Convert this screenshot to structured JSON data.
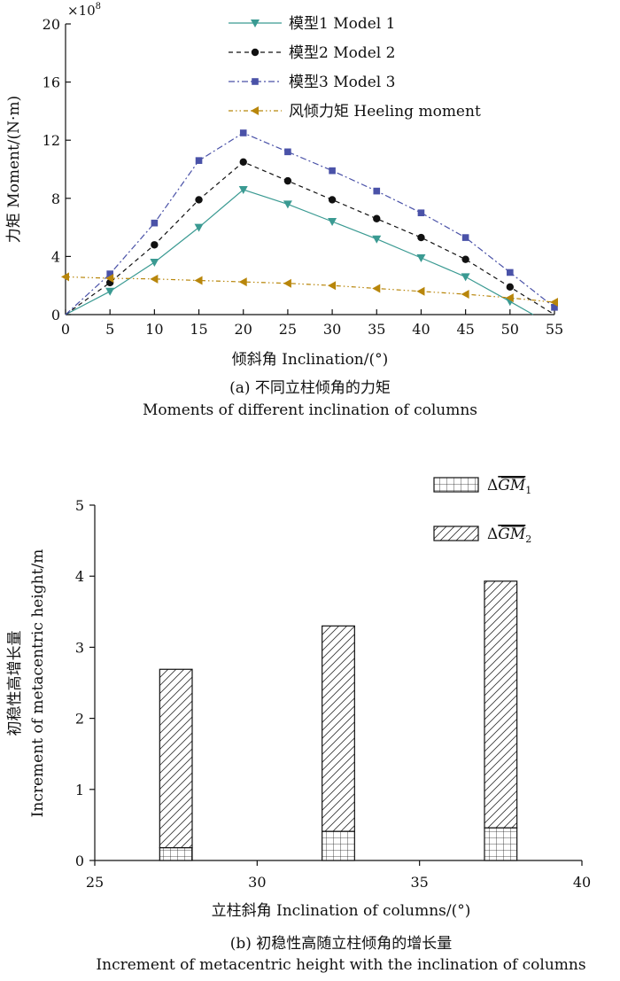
{
  "chart_data": [
    {
      "type": "line",
      "caption_zh": "(a) 不同立柱倾角的力矩",
      "caption_en": "Moments of different inclination of columns",
      "xlabel": "倾斜角 Inclination/(°)",
      "ylabel": "力矩 Moment/(N·m)",
      "y_multiplier": "×10",
      "y_multiplier_exp": "8",
      "xlim": [
        0,
        55
      ],
      "ylim": [
        0,
        20
      ],
      "x_ticks": [
        "0",
        "5",
        "10",
        "15",
        "20",
        "25",
        "30",
        "35",
        "40",
        "45",
        "50",
        "55"
      ],
      "y_ticks": [
        "0",
        "4",
        "8",
        "12",
        "16",
        "20"
      ],
      "grid": false,
      "legend_position": "top-center",
      "series": [
        {
          "name": "模型1 Model 1",
          "color": "#3a9a92",
          "marker": "triangle-down",
          "line_style": "solid",
          "x": [
            0,
            5,
            10,
            15,
            20,
            25,
            30,
            35,
            40,
            45,
            50,
            52.6
          ],
          "y": [
            0,
            1.6,
            3.6,
            6.0,
            8.6,
            7.6,
            6.4,
            5.2,
            3.9,
            2.6,
            0.9,
            0
          ],
          "marker_x": [
            5,
            10,
            15,
            20,
            25,
            30,
            35,
            40,
            45,
            50
          ]
        },
        {
          "name": "模型2 Model 2",
          "color": "#111111",
          "marker": "circle",
          "line_style": "dashed",
          "x": [
            0,
            5,
            10,
            15,
            20,
            25,
            30,
            35,
            40,
            45,
            50,
            55
          ],
          "y": [
            0,
            2.2,
            4.8,
            7.9,
            10.5,
            9.2,
            7.9,
            6.6,
            5.3,
            3.8,
            1.9,
            0
          ],
          "marker_x": [
            5,
            10,
            15,
            20,
            25,
            30,
            35,
            40,
            45,
            50
          ]
        },
        {
          "name": "模型3 Model 3",
          "color": "#4a52a8",
          "marker": "square",
          "line_style": "dash-dot",
          "x": [
            0,
            5,
            10,
            15,
            20,
            25,
            30,
            35,
            40,
            45,
            50,
            55
          ],
          "y": [
            0,
            2.8,
            6.3,
            10.6,
            12.5,
            11.2,
            9.9,
            8.5,
            7.0,
            5.3,
            2.9,
            0.5
          ],
          "marker_x": [
            5,
            10,
            15,
            20,
            25,
            30,
            35,
            40,
            45,
            50,
            55
          ]
        },
        {
          "name": "风倾力矩 Heeling moment",
          "color": "#b8860b",
          "marker": "triangle-left",
          "line_style": "dash-dot-dot",
          "x": [
            0,
            5,
            10,
            15,
            20,
            25,
            30,
            35,
            40,
            45,
            50,
            55
          ],
          "y": [
            2.6,
            2.5,
            2.45,
            2.35,
            2.25,
            2.15,
            2.0,
            1.8,
            1.6,
            1.4,
            1.15,
            0.85
          ],
          "marker_x": [
            0,
            5,
            10,
            15,
            20,
            25,
            30,
            35,
            40,
            45,
            50,
            55
          ]
        }
      ]
    },
    {
      "type": "bar",
      "stacked": true,
      "caption_zh": "(b) 初稳性高随立柱倾角的增长量",
      "caption_en": "Increment of metacentric height with the inclination of columns",
      "xlabel": "立柱斜角 Inclination of columns/(°)",
      "ylabel_zh": "初稳性高增长量",
      "ylabel_en": "Increment of metacentric height/m",
      "xlim": [
        25,
        40
      ],
      "ylim": [
        0,
        5
      ],
      "x_ticks": [
        "25",
        "30",
        "35",
        "40"
      ],
      "y_ticks": [
        "0",
        "1",
        "2",
        "3",
        "4",
        "5"
      ],
      "grid": false,
      "legend_position": "top-right",
      "bar_width": 1,
      "bar_centers": [
        27.5,
        32.5,
        37.5
      ],
      "series": [
        {
          "name": "ΔGM̄₁",
          "legend_sym": "ΔGM",
          "legend_sub": "1",
          "pattern": "grid",
          "values": [
            0.18,
            0.41,
            0.46
          ]
        },
        {
          "name": "ΔGM̄₂",
          "legend_sym": "ΔGM",
          "legend_sub": "2",
          "pattern": "diagonal-hatch",
          "values": [
            2.51,
            2.89,
            3.47
          ]
        }
      ],
      "totals": [
        2.69,
        3.3,
        3.93
      ]
    }
  ]
}
